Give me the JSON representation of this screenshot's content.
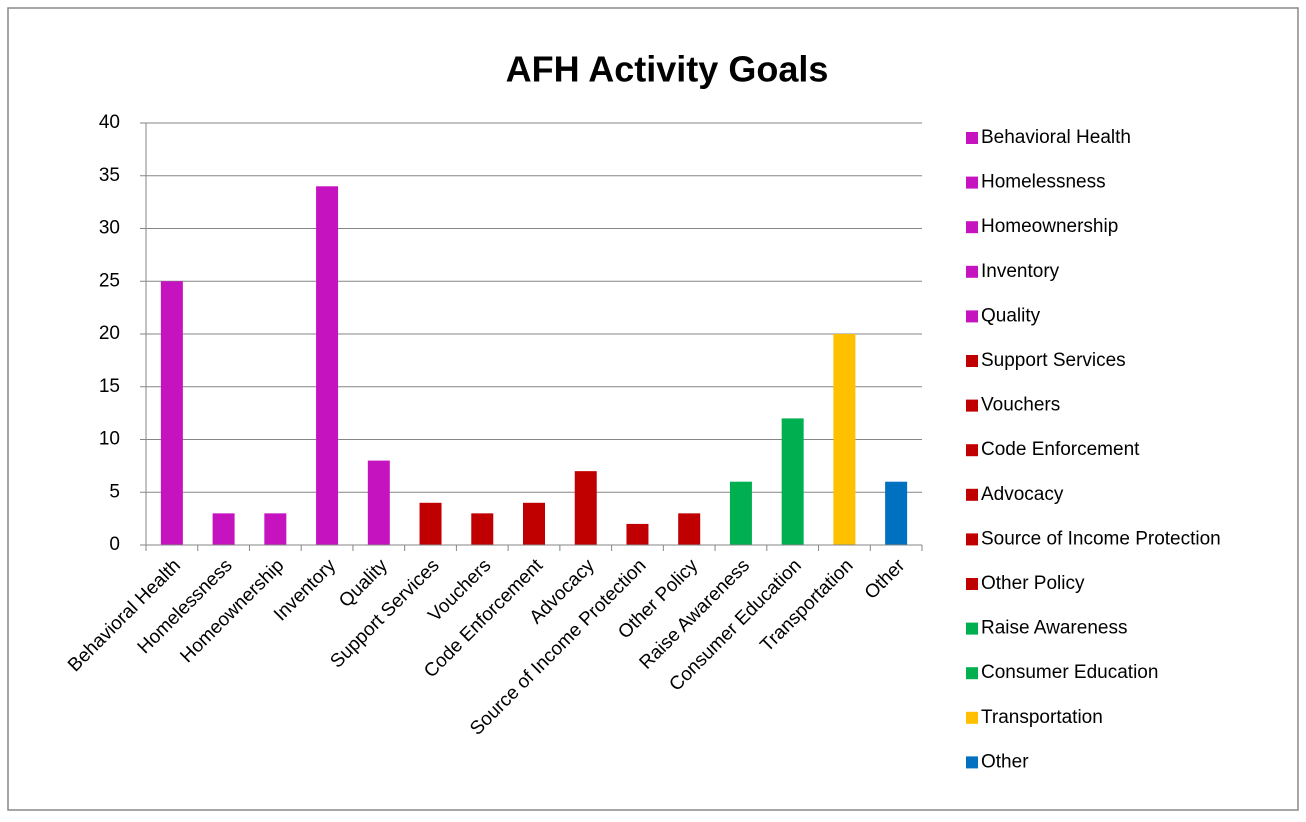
{
  "chart_data": {
    "type": "bar",
    "title": "AFH Activity Goals",
    "categories": [
      "Behavioral Health",
      "Homelessness",
      "Homeownership",
      "Inventory",
      "Quality",
      "Support Services",
      "Vouchers",
      "Code Enforcement",
      "Advocacy",
      "Source of Income Protection",
      "Other Policy",
      "Raise Awareness",
      "Consumer Education",
      "Transportation",
      "Other"
    ],
    "values": [
      25,
      3,
      3,
      34,
      8,
      4,
      3,
      4,
      7,
      2,
      3,
      6,
      12,
      20,
      6
    ],
    "colors": [
      "#c613c0",
      "#c613c0",
      "#c613c0",
      "#c613c0",
      "#c613c0",
      "#c00000",
      "#c00000",
      "#c00000",
      "#c00000",
      "#c00000",
      "#c00000",
      "#00b050",
      "#00b050",
      "#ffc000",
      "#0070c0"
    ],
    "ylim": [
      0,
      40
    ],
    "yticks": [
      0,
      5,
      10,
      15,
      20,
      25,
      30,
      35,
      40
    ],
    "grid": true,
    "legend": "right"
  }
}
